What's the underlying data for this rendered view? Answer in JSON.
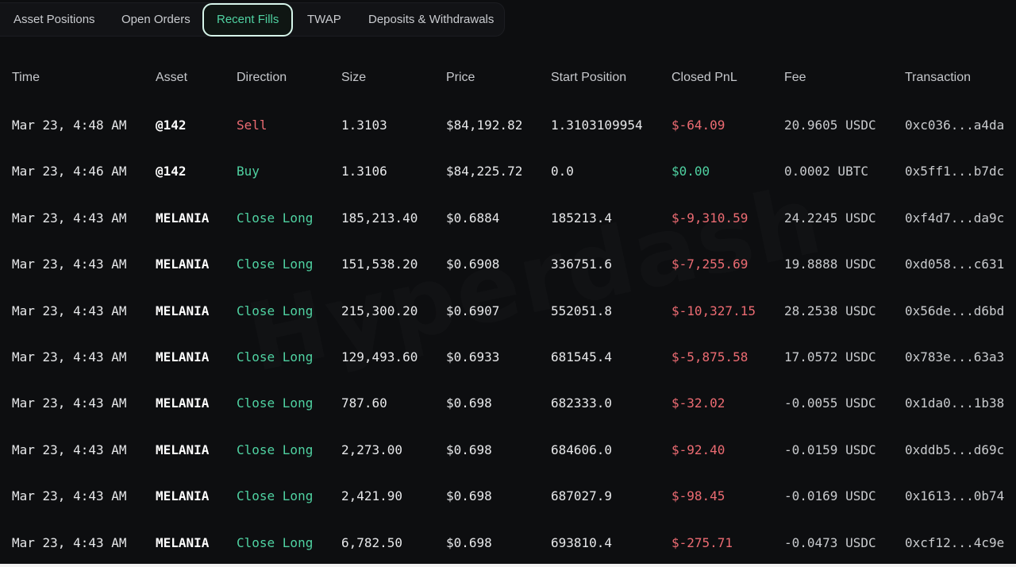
{
  "tabs": [
    {
      "label": "Asset Positions"
    },
    {
      "label": "Open Orders"
    },
    {
      "label": "Recent Fills"
    },
    {
      "label": "TWAP"
    },
    {
      "label": "Deposits & Withdrawals"
    }
  ],
  "active_tab": "Recent Fills",
  "watermark": "Hyperdash",
  "columns": [
    "Time",
    "Asset",
    "Direction",
    "Size",
    "Price",
    "Start Position",
    "Closed PnL",
    "Fee",
    "Transaction"
  ],
  "rows": [
    {
      "time": "Mar 23, 4:48 AM",
      "asset": "@142",
      "direction": "Sell",
      "size": "1.3103",
      "price": "$84,192.82",
      "start_position": "1.3103109954",
      "closed_pnl": "$-64.09",
      "fee": "20.9605 USDC",
      "transaction": "0xc036...a4da"
    },
    {
      "time": "Mar 23, 4:46 AM",
      "asset": "@142",
      "direction": "Buy",
      "size": "1.3106",
      "price": "$84,225.72",
      "start_position": "0.0",
      "closed_pnl": "$0.00",
      "fee": "0.0002 UBTC",
      "transaction": "0x5ff1...b7dc"
    },
    {
      "time": "Mar 23, 4:43 AM",
      "asset": "MELANIA",
      "direction": "Close Long",
      "size": "185,213.40",
      "price": "$0.6884",
      "start_position": "185213.4",
      "closed_pnl": "$-9,310.59",
      "fee": "24.2245 USDC",
      "transaction": "0xf4d7...da9c"
    },
    {
      "time": "Mar 23, 4:43 AM",
      "asset": "MELANIA",
      "direction": "Close Long",
      "size": "151,538.20",
      "price": "$0.6908",
      "start_position": "336751.6",
      "closed_pnl": "$-7,255.69",
      "fee": "19.8888 USDC",
      "transaction": "0xd058...c631"
    },
    {
      "time": "Mar 23, 4:43 AM",
      "asset": "MELANIA",
      "direction": "Close Long",
      "size": "215,300.20",
      "price": "$0.6907",
      "start_position": "552051.8",
      "closed_pnl": "$-10,327.15",
      "fee": "28.2538 USDC",
      "transaction": "0x56de...d6bd"
    },
    {
      "time": "Mar 23, 4:43 AM",
      "asset": "MELANIA",
      "direction": "Close Long",
      "size": "129,493.60",
      "price": "$0.6933",
      "start_position": "681545.4",
      "closed_pnl": "$-5,875.58",
      "fee": "17.0572 USDC",
      "transaction": "0x783e...63a3"
    },
    {
      "time": "Mar 23, 4:43 AM",
      "asset": "MELANIA",
      "direction": "Close Long",
      "size": "787.60",
      "price": "$0.698",
      "start_position": "682333.0",
      "closed_pnl": "$-32.02",
      "fee": "-0.0055 USDC",
      "transaction": "0x1da0...1b38"
    },
    {
      "time": "Mar 23, 4:43 AM",
      "asset": "MELANIA",
      "direction": "Close Long",
      "size": "2,273.00",
      "price": "$0.698",
      "start_position": "684606.0",
      "closed_pnl": "$-92.40",
      "fee": "-0.0159 USDC",
      "transaction": "0xddb5...d69c"
    },
    {
      "time": "Mar 23, 4:43 AM",
      "asset": "MELANIA",
      "direction": "Close Long",
      "size": "2,421.90",
      "price": "$0.698",
      "start_position": "687027.9",
      "closed_pnl": "$-98.45",
      "fee": "-0.0169 USDC",
      "transaction": "0x1613...0b74"
    },
    {
      "time": "Mar 23, 4:43 AM",
      "asset": "MELANIA",
      "direction": "Close Long",
      "size": "6,782.50",
      "price": "$0.698",
      "start_position": "693810.4",
      "closed_pnl": "$-275.71",
      "fee": "-0.0473 USDC",
      "transaction": "0xcf12...4c9e"
    }
  ],
  "colors": {
    "background": "#0d0e10",
    "accent_green": "#4fd1a1",
    "negative_red": "#ec6b72",
    "active_tab_border": "#d6f5ea"
  }
}
